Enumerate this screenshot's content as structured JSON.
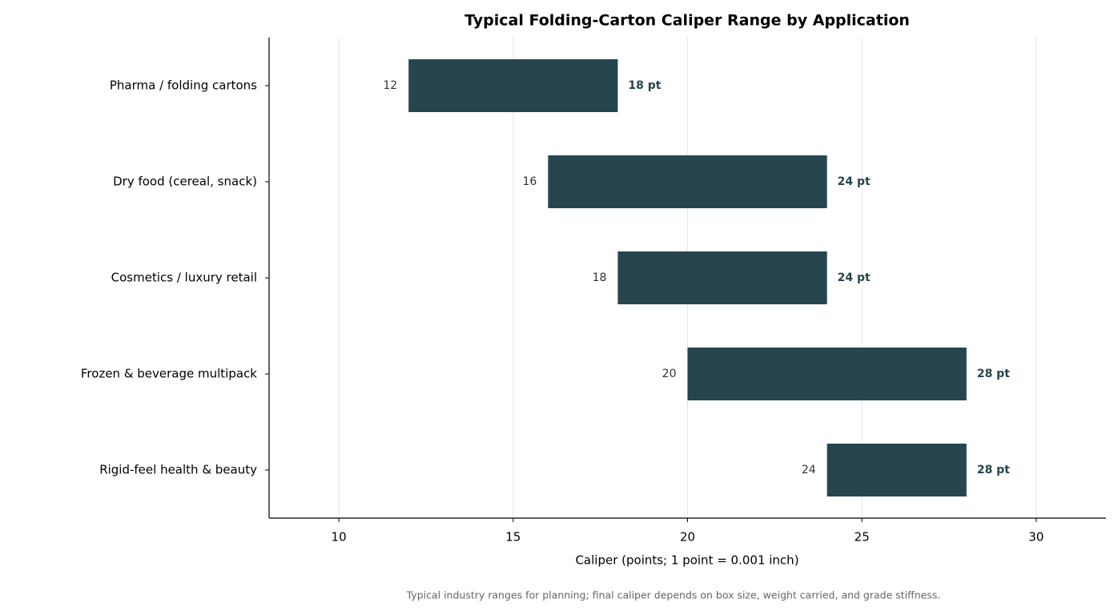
{
  "chart_data": {
    "type": "floating_bar",
    "title": "Typical Folding-Carton Caliper Range by Application",
    "xlabel": "Caliper (points; 1 point = 0.001 inch)",
    "footnote": "Typical industry ranges for planning; final caliper depends on box size, weight carried, and grade stiffness.",
    "categories": [
      "Pharma / folding cartons",
      "Dry food (cereal, snack)",
      "Cosmetics / luxury retail",
      "Frozen & beverage multipack",
      "Rigid-feel health & beauty"
    ],
    "starts": [
      12,
      16,
      18,
      20,
      24
    ],
    "values": [
      18,
      24,
      24,
      28,
      28
    ],
    "value_labels": [
      "18 pt",
      "24 pt",
      "24 pt",
      "28 pt",
      "28 pt"
    ],
    "color": "#26454f",
    "xlim": [
      8,
      32
    ],
    "xticks": [
      10,
      15,
      20,
      25,
      30
    ],
    "grid": true
  }
}
